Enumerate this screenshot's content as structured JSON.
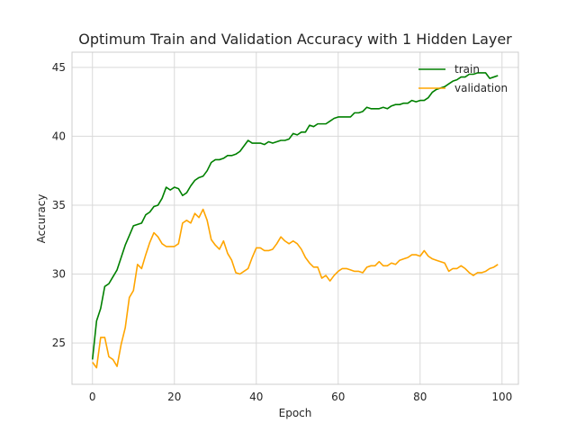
{
  "chart_data": {
    "type": "line",
    "title": "Optimum Train and Validation Accuracy with 1 Hidden Layer",
    "xlabel": "Epoch",
    "ylabel": "Accuracy",
    "xlim": [
      -5,
      104
    ],
    "ylim": [
      22,
      46.1
    ],
    "xticks": [
      0,
      20,
      40,
      60,
      80,
      100
    ],
    "yticks": [
      25,
      30,
      35,
      40,
      45
    ],
    "grid": true,
    "legend_position": "top-right",
    "series": [
      {
        "name": "train",
        "color": "#008000",
        "values": [
          23.8,
          26.6,
          27.5,
          29.1,
          29.3,
          29.8,
          30.3,
          31.2,
          32.1,
          32.8,
          33.5,
          33.6,
          33.7,
          34.3,
          34.5,
          34.9,
          35.0,
          35.5,
          36.3,
          36.1,
          36.3,
          36.2,
          35.7,
          35.9,
          36.4,
          36.8,
          37.0,
          37.1,
          37.5,
          38.1,
          38.3,
          38.3,
          38.4,
          38.6,
          38.6,
          38.7,
          38.9,
          39.3,
          39.7,
          39.5,
          39.5,
          39.5,
          39.4,
          39.6,
          39.5,
          39.6,
          39.7,
          39.7,
          39.8,
          40.2,
          40.1,
          40.3,
          40.3,
          40.8,
          40.7,
          40.9,
          40.9,
          40.9,
          41.1,
          41.3,
          41.4,
          41.4,
          41.4,
          41.4,
          41.7,
          41.7,
          41.8,
          42.1,
          42.0,
          42.0,
          42.0,
          42.1,
          42.0,
          42.2,
          42.3,
          42.3,
          42.4,
          42.4,
          42.6,
          42.5,
          42.6,
          42.6,
          42.8,
          43.2,
          43.4,
          43.5,
          43.6,
          43.8,
          44.0,
          44.1,
          44.3,
          44.3,
          44.5,
          44.5,
          44.6,
          44.6,
          44.6,
          44.2,
          44.3,
          44.4
        ]
      },
      {
        "name": "validation",
        "color": "#ffa500",
        "values": [
          23.6,
          23.2,
          25.4,
          25.4,
          24.0,
          23.8,
          23.3,
          24.9,
          26.1,
          28.3,
          28.8,
          30.7,
          30.4,
          31.4,
          32.3,
          33.0,
          32.7,
          32.2,
          32.0,
          32.0,
          32.0,
          32.2,
          33.7,
          33.9,
          33.7,
          34.4,
          34.1,
          34.7,
          33.9,
          32.5,
          32.1,
          31.8,
          32.4,
          31.5,
          31.0,
          30.1,
          30.0,
          30.2,
          30.4,
          31.2,
          31.9,
          31.9,
          31.7,
          31.7,
          31.8,
          32.2,
          32.7,
          32.4,
          32.2,
          32.4,
          32.2,
          31.8,
          31.2,
          30.8,
          30.5,
          30.5,
          29.7,
          29.9,
          29.5,
          29.9,
          30.2,
          30.4,
          30.4,
          30.3,
          30.2,
          30.2,
          30.1,
          30.5,
          30.6,
          30.6,
          30.9,
          30.6,
          30.6,
          30.8,
          30.7,
          31.0,
          31.1,
          31.2,
          31.4,
          31.4,
          31.3,
          31.7,
          31.3,
          31.1,
          31.0,
          30.9,
          30.8,
          30.2,
          30.4,
          30.4,
          30.6,
          30.4,
          30.1,
          29.9,
          30.1,
          30.1,
          30.2,
          30.4,
          30.5,
          30.7
        ]
      }
    ]
  }
}
